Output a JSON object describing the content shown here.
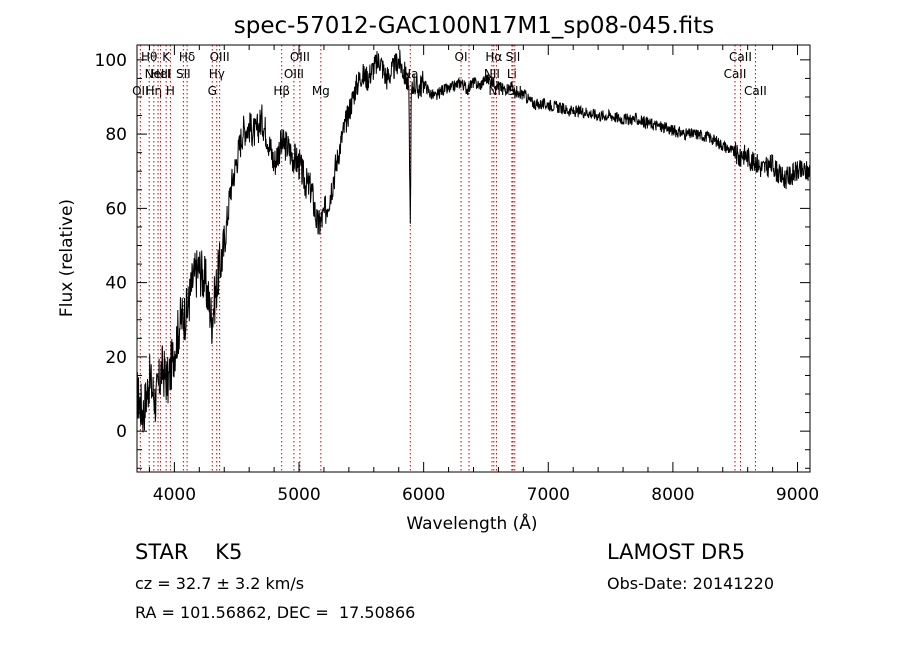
{
  "chart_data": {
    "type": "line",
    "title": "spec-57012-GAC100N17M1_sp08-045.fits",
    "xlabel": "Wavelength (Å)",
    "ylabel": "Flux (relative)",
    "xlim": [
      3700,
      9100
    ],
    "ylim": [
      -11,
      104
    ],
    "xticks": [
      4000,
      5000,
      6000,
      7000,
      8000,
      9000
    ],
    "xtick_labels": [
      "4000",
      "5000",
      "6000",
      "7000",
      "8000",
      "9000"
    ],
    "yticks": [
      0,
      20,
      40,
      60,
      80,
      100
    ],
    "ytick_labels": [
      "0",
      "20",
      "40",
      "60",
      "80",
      "100"
    ],
    "grid": false,
    "line_color": "#000000",
    "marker_color": "#cc0000",
    "series": [
      {
        "x": [
          3700,
          3750,
          3800,
          3850,
          3900,
          3950,
          4000,
          4050,
          4100,
          4150,
          4200,
          4250,
          4300,
          4350,
          4400,
          4450,
          4500,
          4550,
          4600,
          4650,
          4700,
          4750,
          4800,
          4850,
          4900,
          4950,
          5000,
          5050,
          5100,
          5150,
          5200,
          5250,
          5300,
          5350,
          5400,
          5450,
          5500,
          5550,
          5600,
          5650,
          5700,
          5750,
          5800,
          5850,
          5880,
          5893,
          5900,
          5920,
          5950,
          6000,
          6050,
          6100,
          6150,
          6200,
          6250,
          6300,
          6350,
          6400,
          6450,
          6500,
          6550,
          6563,
          6600,
          6650,
          6700,
          6750,
          6800,
          6850,
          6900,
          6950,
          7000,
          7100,
          7200,
          7300,
          7400,
          7500,
          7600,
          7700,
          7800,
          7900,
          8000,
          8100,
          8200,
          8300,
          8400,
          8450,
          8500,
          8542,
          8550,
          8600,
          8650,
          8662,
          8700,
          8750,
          8800,
          8850,
          8900,
          8950,
          9000,
          9050
        ],
        "y": [
          10,
          5,
          14,
          8,
          17,
          13,
          22,
          30,
          32,
          41,
          44,
          40,
          30,
          42,
          50,
          65,
          73,
          81,
          82,
          80,
          84,
          79,
          72,
          77,
          77,
          74,
          72,
          67,
          65,
          55,
          58,
          64,
          72,
          80,
          86,
          92,
          96,
          95,
          98,
          100,
          95,
          97,
          100,
          96,
          93,
          55,
          90,
          94,
          92,
          94,
          91,
          90,
          92,
          92,
          93,
          94,
          92,
          94,
          93,
          95,
          94,
          94,
          93,
          92,
          93,
          90,
          91,
          89,
          88,
          88,
          88,
          87,
          86,
          86,
          85,
          85,
          84,
          84,
          83,
          82,
          81,
          80,
          80,
          79,
          77,
          76,
          75,
          73,
          75,
          74,
          72,
          73,
          71,
          71,
          72,
          69,
          68,
          69,
          70,
          70
        ]
      }
    ],
    "line_markers": [
      {
        "wavelength": 3727,
        "label": "OII",
        "row": 2
      },
      {
        "wavelength": 3798,
        "label": "Hθ",
        "row": 0
      },
      {
        "wavelength": 3835,
        "label": "Hη",
        "row": 2
      },
      {
        "wavelength": 3869,
        "label": "NeIII",
        "row": 1
      },
      {
        "wavelength": 3889,
        "label": "HeI",
        "row": 1
      },
      {
        "wavelength": 3934,
        "label": "K",
        "row": 0
      },
      {
        "wavelength": 3968,
        "label": "H",
        "row": 2
      },
      {
        "wavelength": 4072,
        "label": "SII",
        "row": 1
      },
      {
        "wavelength": 4102,
        "label": "Hδ",
        "row": 0
      },
      {
        "wavelength": 4304,
        "label": "G",
        "row": 2
      },
      {
        "wavelength": 4340,
        "label": "Hγ",
        "row": 1
      },
      {
        "wavelength": 4363,
        "label": "OIII",
        "row": 0
      },
      {
        "wavelength": 4861,
        "label": "Hβ",
        "row": 2
      },
      {
        "wavelength": 4959,
        "label": "OIII",
        "row": 1
      },
      {
        "wavelength": 5007,
        "label": "OIII",
        "row": 0
      },
      {
        "wavelength": 5175,
        "label": "Mg",
        "row": 2
      },
      {
        "wavelength": 5893,
        "label": "Na",
        "row": 1
      },
      {
        "wavelength": 6300,
        "label": "OI",
        "row": 0
      },
      {
        "wavelength": 6364,
        "label": "",
        "row": 1
      },
      {
        "wavelength": 6548,
        "label": "NII",
        "row": 1
      },
      {
        "wavelength": 6563,
        "label": "Hα",
        "row": 0
      },
      {
        "wavelength": 6584,
        "label": "NII",
        "row": 2
      },
      {
        "wavelength": 6708,
        "label": "Li",
        "row": 1
      },
      {
        "wavelength": 6717,
        "label": "SII",
        "row": 0
      },
      {
        "wavelength": 6731,
        "label": "SII",
        "row": 2
      },
      {
        "wavelength": 8498,
        "label": "CaII",
        "row": 1
      },
      {
        "wavelength": 8542,
        "label": "CaII",
        "row": 0
      },
      {
        "wavelength": 8662,
        "label": "CaII",
        "row": 2
      }
    ]
  },
  "info": {
    "class_line": "STAR    K5",
    "cz_line": "cz = 32.7 ± 3.2 km/s",
    "radec_line": "RA = 101.56862, DEC =  17.50866",
    "survey": "LAMOST DR5",
    "obs_date": "Obs-Date: 20141220"
  }
}
